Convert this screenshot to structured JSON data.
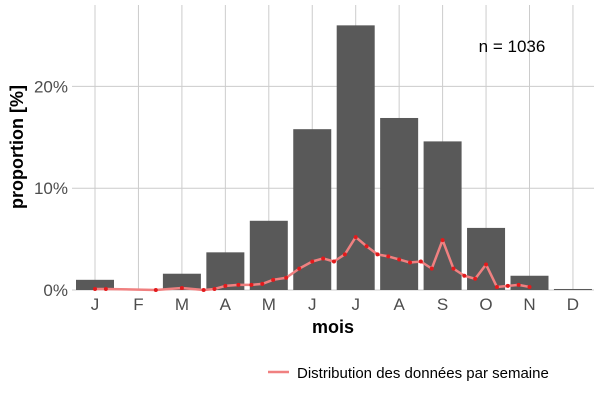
{
  "chart_data": {
    "type": "bar",
    "categories": [
      "J",
      "F",
      "M",
      "A",
      "M",
      "J",
      "J",
      "A",
      "S",
      "O",
      "N",
      "D"
    ],
    "values": [
      1.0,
      0.0,
      1.6,
      3.7,
      6.8,
      15.8,
      26.0,
      16.9,
      14.6,
      6.1,
      1.4,
      0.1
    ],
    "xlabel": "mois",
    "ylabel": "proportion [%]",
    "ylim": [
      0,
      28
    ],
    "yticks": [
      0,
      10,
      20
    ],
    "ytick_labels": [
      "0%",
      "10%",
      "20%"
    ],
    "annotation": "n = 1036",
    "grid": true,
    "legend_position": "bottom-right",
    "bar_color": "#595959",
    "line_series": {
      "name": "Distribution des données par semaine",
      "color": "#f08080",
      "point_color": "#e31a1c",
      "x": [
        0.0,
        0.25,
        1.4,
        2.0,
        2.5,
        2.75,
        3.0,
        3.3,
        3.6,
        3.85,
        4.1,
        4.4,
        4.7,
        5.0,
        5.25,
        5.5,
        5.75,
        6.0,
        6.25,
        6.5,
        6.75,
        7.0,
        7.25,
        7.5,
        7.75,
        8.0,
        8.25,
        8.5,
        8.75,
        9.0,
        9.25,
        9.5,
        9.75,
        10.0
      ],
      "y": [
        0.1,
        0.1,
        0.0,
        0.2,
        0.0,
        0.1,
        0.4,
        0.5,
        0.5,
        0.6,
        1.0,
        1.2,
        2.1,
        2.8,
        3.1,
        2.8,
        3.5,
        5.2,
        4.3,
        3.5,
        3.3,
        3.0,
        2.7,
        2.8,
        2.1,
        4.9,
        2.1,
        1.4,
        1.1,
        2.5,
        0.3,
        0.4,
        0.5,
        0.3
      ]
    }
  }
}
